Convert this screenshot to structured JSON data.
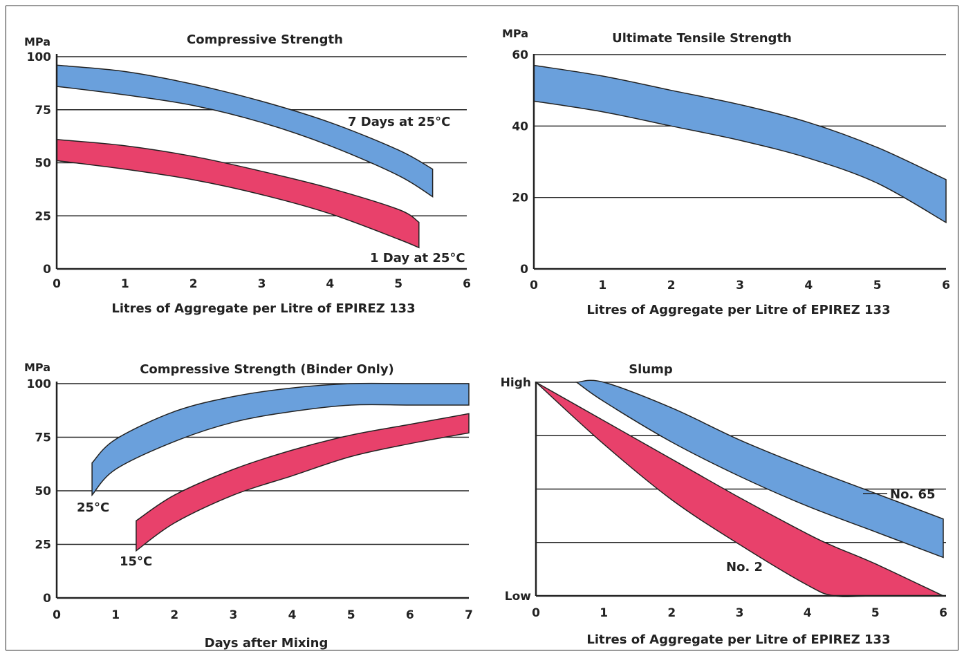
{
  "colors": {
    "blue": "#6aa0dc",
    "red": "#e8416b",
    "line": "#222222"
  },
  "chart_data": [
    {
      "type": "area",
      "title": "Compressive Strength",
      "ylabel": "MPa",
      "xlabel": "Litres of Aggregate per Litre of EPIREZ 133",
      "x_ticks": [
        "0",
        "1",
        "2",
        "3",
        "4",
        "5",
        "6"
      ],
      "y_ticks": [
        "0",
        "25",
        "50",
        "75",
        "100"
      ],
      "xlim": [
        0,
        6
      ],
      "ylim": [
        0,
        100
      ],
      "grid": true,
      "series": [
        {
          "name": "7 Days at 25°C",
          "color": "blue",
          "x": [
            0,
            1,
            2,
            3,
            4,
            5,
            5.5
          ],
          "upper": [
            96,
            93,
            87,
            79,
            69,
            56,
            47
          ],
          "lower": [
            86,
            82,
            77,
            69,
            58,
            44,
            34
          ]
        },
        {
          "name": "1 Day at 25°C",
          "color": "red",
          "x": [
            0,
            1,
            2,
            3,
            4,
            5,
            5.3
          ],
          "upper": [
            61,
            58,
            53,
            46,
            38,
            28,
            22
          ],
          "lower": [
            51,
            47,
            42,
            35,
            26,
            14,
            10
          ]
        }
      ]
    },
    {
      "type": "area",
      "title": "Ultimate Tensile Strength",
      "ylabel": "MPa",
      "xlabel": "Litres of Aggregate per Litre of EPIREZ 133",
      "x_ticks": [
        "0",
        "1",
        "2",
        "3",
        "4",
        "5",
        "6"
      ],
      "y_ticks": [
        "0",
        "20",
        "40",
        "60"
      ],
      "xlim": [
        0,
        6
      ],
      "ylim": [
        0,
        60
      ],
      "grid": true,
      "series": [
        {
          "name": "",
          "color": "blue",
          "x": [
            0,
            1,
            2,
            3,
            4,
            5,
            6
          ],
          "upper": [
            57,
            54,
            50,
            46,
            41,
            34,
            25
          ],
          "lower": [
            47,
            44,
            40,
            36,
            31,
            24,
            13
          ]
        }
      ]
    },
    {
      "type": "area",
      "title": "Compressive Strength (Binder Only)",
      "ylabel": "MPa",
      "xlabel": "Days after Mixing",
      "x_ticks": [
        "0",
        "1",
        "2",
        "3",
        "4",
        "5",
        "6",
        "7"
      ],
      "y_ticks": [
        "0",
        "25",
        "50",
        "75",
        "100"
      ],
      "xlim": [
        0,
        7
      ],
      "ylim": [
        0,
        100
      ],
      "grid": true,
      "series": [
        {
          "name": "25°C",
          "color": "blue",
          "x": [
            0.6,
            1,
            2,
            3,
            4,
            5,
            6,
            7
          ],
          "upper": [
            63,
            74,
            87,
            94,
            98,
            100,
            100,
            100
          ],
          "lower": [
            48,
            60,
            73,
            82,
            87,
            90,
            90,
            90
          ]
        },
        {
          "name": "15°C",
          "color": "red",
          "x": [
            1.35,
            2,
            3,
            4,
            5,
            6,
            7
          ],
          "upper": [
            36,
            48,
            60,
            69,
            76,
            81,
            86
          ],
          "lower": [
            22,
            35,
            48,
            57,
            66,
            72,
            77
          ]
        }
      ]
    },
    {
      "type": "area",
      "title": "Slump",
      "ylabel": "",
      "xlabel": "Litres of Aggregate per Litre of EPIREZ 133",
      "x_ticks": [
        "0",
        "1",
        "2",
        "3",
        "4",
        "5",
        "6"
      ],
      "y_ticks": [
        "Low",
        "High"
      ],
      "xlim": [
        0,
        6
      ],
      "ylim": [
        0,
        100
      ],
      "grid": true,
      "series": [
        {
          "name": "No. 65",
          "color": "blue",
          "x": [
            0.6,
            1,
            2,
            3,
            4,
            5,
            6
          ],
          "upper": [
            100,
            100,
            88,
            73,
            60,
            48,
            36
          ],
          "lower": [
            100,
            91,
            72,
            56,
            42,
            30,
            18
          ]
        },
        {
          "name": "No. 2",
          "color": "red",
          "x": [
            0,
            1,
            2,
            3,
            4,
            4.4,
            5,
            6
          ],
          "upper": [
            100,
            82,
            64,
            46,
            29,
            23,
            15,
            0
          ],
          "lower": [
            100,
            71,
            45,
            24,
            5,
            0,
            0,
            0
          ]
        }
      ]
    }
  ]
}
